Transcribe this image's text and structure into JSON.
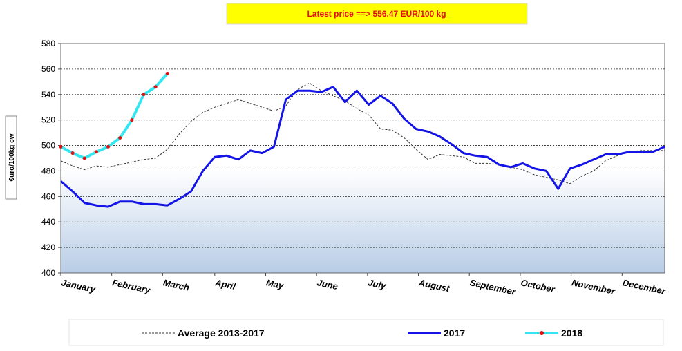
{
  "chart_data": {
    "type": "line",
    "title": "Latest price ==> 556.47 EUR/100 kg",
    "y_label": "€uro/100kg cw",
    "x": [
      1,
      2,
      3,
      4,
      5,
      6,
      7,
      8,
      9,
      10,
      11,
      12,
      13,
      14,
      15,
      16,
      17,
      18,
      19,
      20,
      21,
      22,
      23,
      24,
      25,
      26,
      27,
      28,
      29,
      30,
      31,
      32,
      33,
      34,
      35,
      36,
      37,
      38,
      39,
      40,
      41,
      42,
      43,
      44,
      45,
      46,
      47,
      48,
      49,
      50,
      51,
      52
    ],
    "xlim": [
      1,
      52
    ],
    "xticks": [
      {
        "value": 1,
        "label": "January"
      },
      {
        "value": 5.3,
        "label": "February"
      },
      {
        "value": 9.6,
        "label": "March"
      },
      {
        "value": 14,
        "label": "April"
      },
      {
        "value": 18.3,
        "label": "May"
      },
      {
        "value": 22.6,
        "label": "June"
      },
      {
        "value": 26.9,
        "label": "July"
      },
      {
        "value": 31.2,
        "label": "August"
      },
      {
        "value": 35.5,
        "label": "September"
      },
      {
        "value": 39.8,
        "label": "October"
      },
      {
        "value": 44.1,
        "label": "November"
      },
      {
        "value": 48.4,
        "label": "December"
      }
    ],
    "ylim": [
      400,
      580
    ],
    "yticks": [
      400,
      420,
      440,
      460,
      480,
      500,
      520,
      540,
      560,
      580
    ],
    "grid": true,
    "series": [
      {
        "name": "Average 2013-2017",
        "color": "#333333",
        "dash": true,
        "values": [
          488,
          484,
          481,
          484,
          483,
          485,
          487,
          489,
          490,
          497,
          509,
          519,
          526,
          530,
          533,
          536,
          533,
          530,
          527,
          531,
          544,
          549,
          543,
          539,
          535,
          529,
          524,
          513,
          512,
          506,
          497,
          489,
          493,
          492,
          491,
          486,
          486,
          485,
          483,
          481,
          477,
          475,
          473,
          470,
          476,
          480,
          488,
          492,
          495,
          496,
          496,
          496
        ]
      },
      {
        "name": "2017",
        "color": "#1414e6",
        "values": [
          472,
          464,
          455,
          453,
          452,
          456,
          456,
          454,
          454,
          453,
          458,
          464,
          480,
          491,
          492,
          489,
          496,
          494,
          499,
          536,
          543,
          543,
          542,
          546,
          534,
          543,
          532,
          539,
          533,
          521,
          513,
          511,
          507,
          501,
          494,
          492,
          491,
          485,
          483,
          486,
          482,
          480,
          466,
          482,
          485,
          489,
          493,
          493,
          495,
          495,
          495,
          499
        ]
      },
      {
        "name": "2018",
        "color": "#33e6f0",
        "marker_color": "#e01010",
        "values": [
          499,
          494,
          490,
          495,
          499,
          506,
          520,
          540,
          546,
          556.47,
          null,
          null,
          null,
          null,
          null,
          null,
          null,
          null,
          null,
          null,
          null,
          null,
          null,
          null,
          null,
          null,
          null,
          null,
          null,
          null,
          null,
          null,
          null,
          null,
          null,
          null,
          null,
          null,
          null,
          null,
          null,
          null,
          null,
          null,
          null,
          null,
          null,
          null,
          null,
          null,
          null,
          null
        ]
      }
    ]
  }
}
